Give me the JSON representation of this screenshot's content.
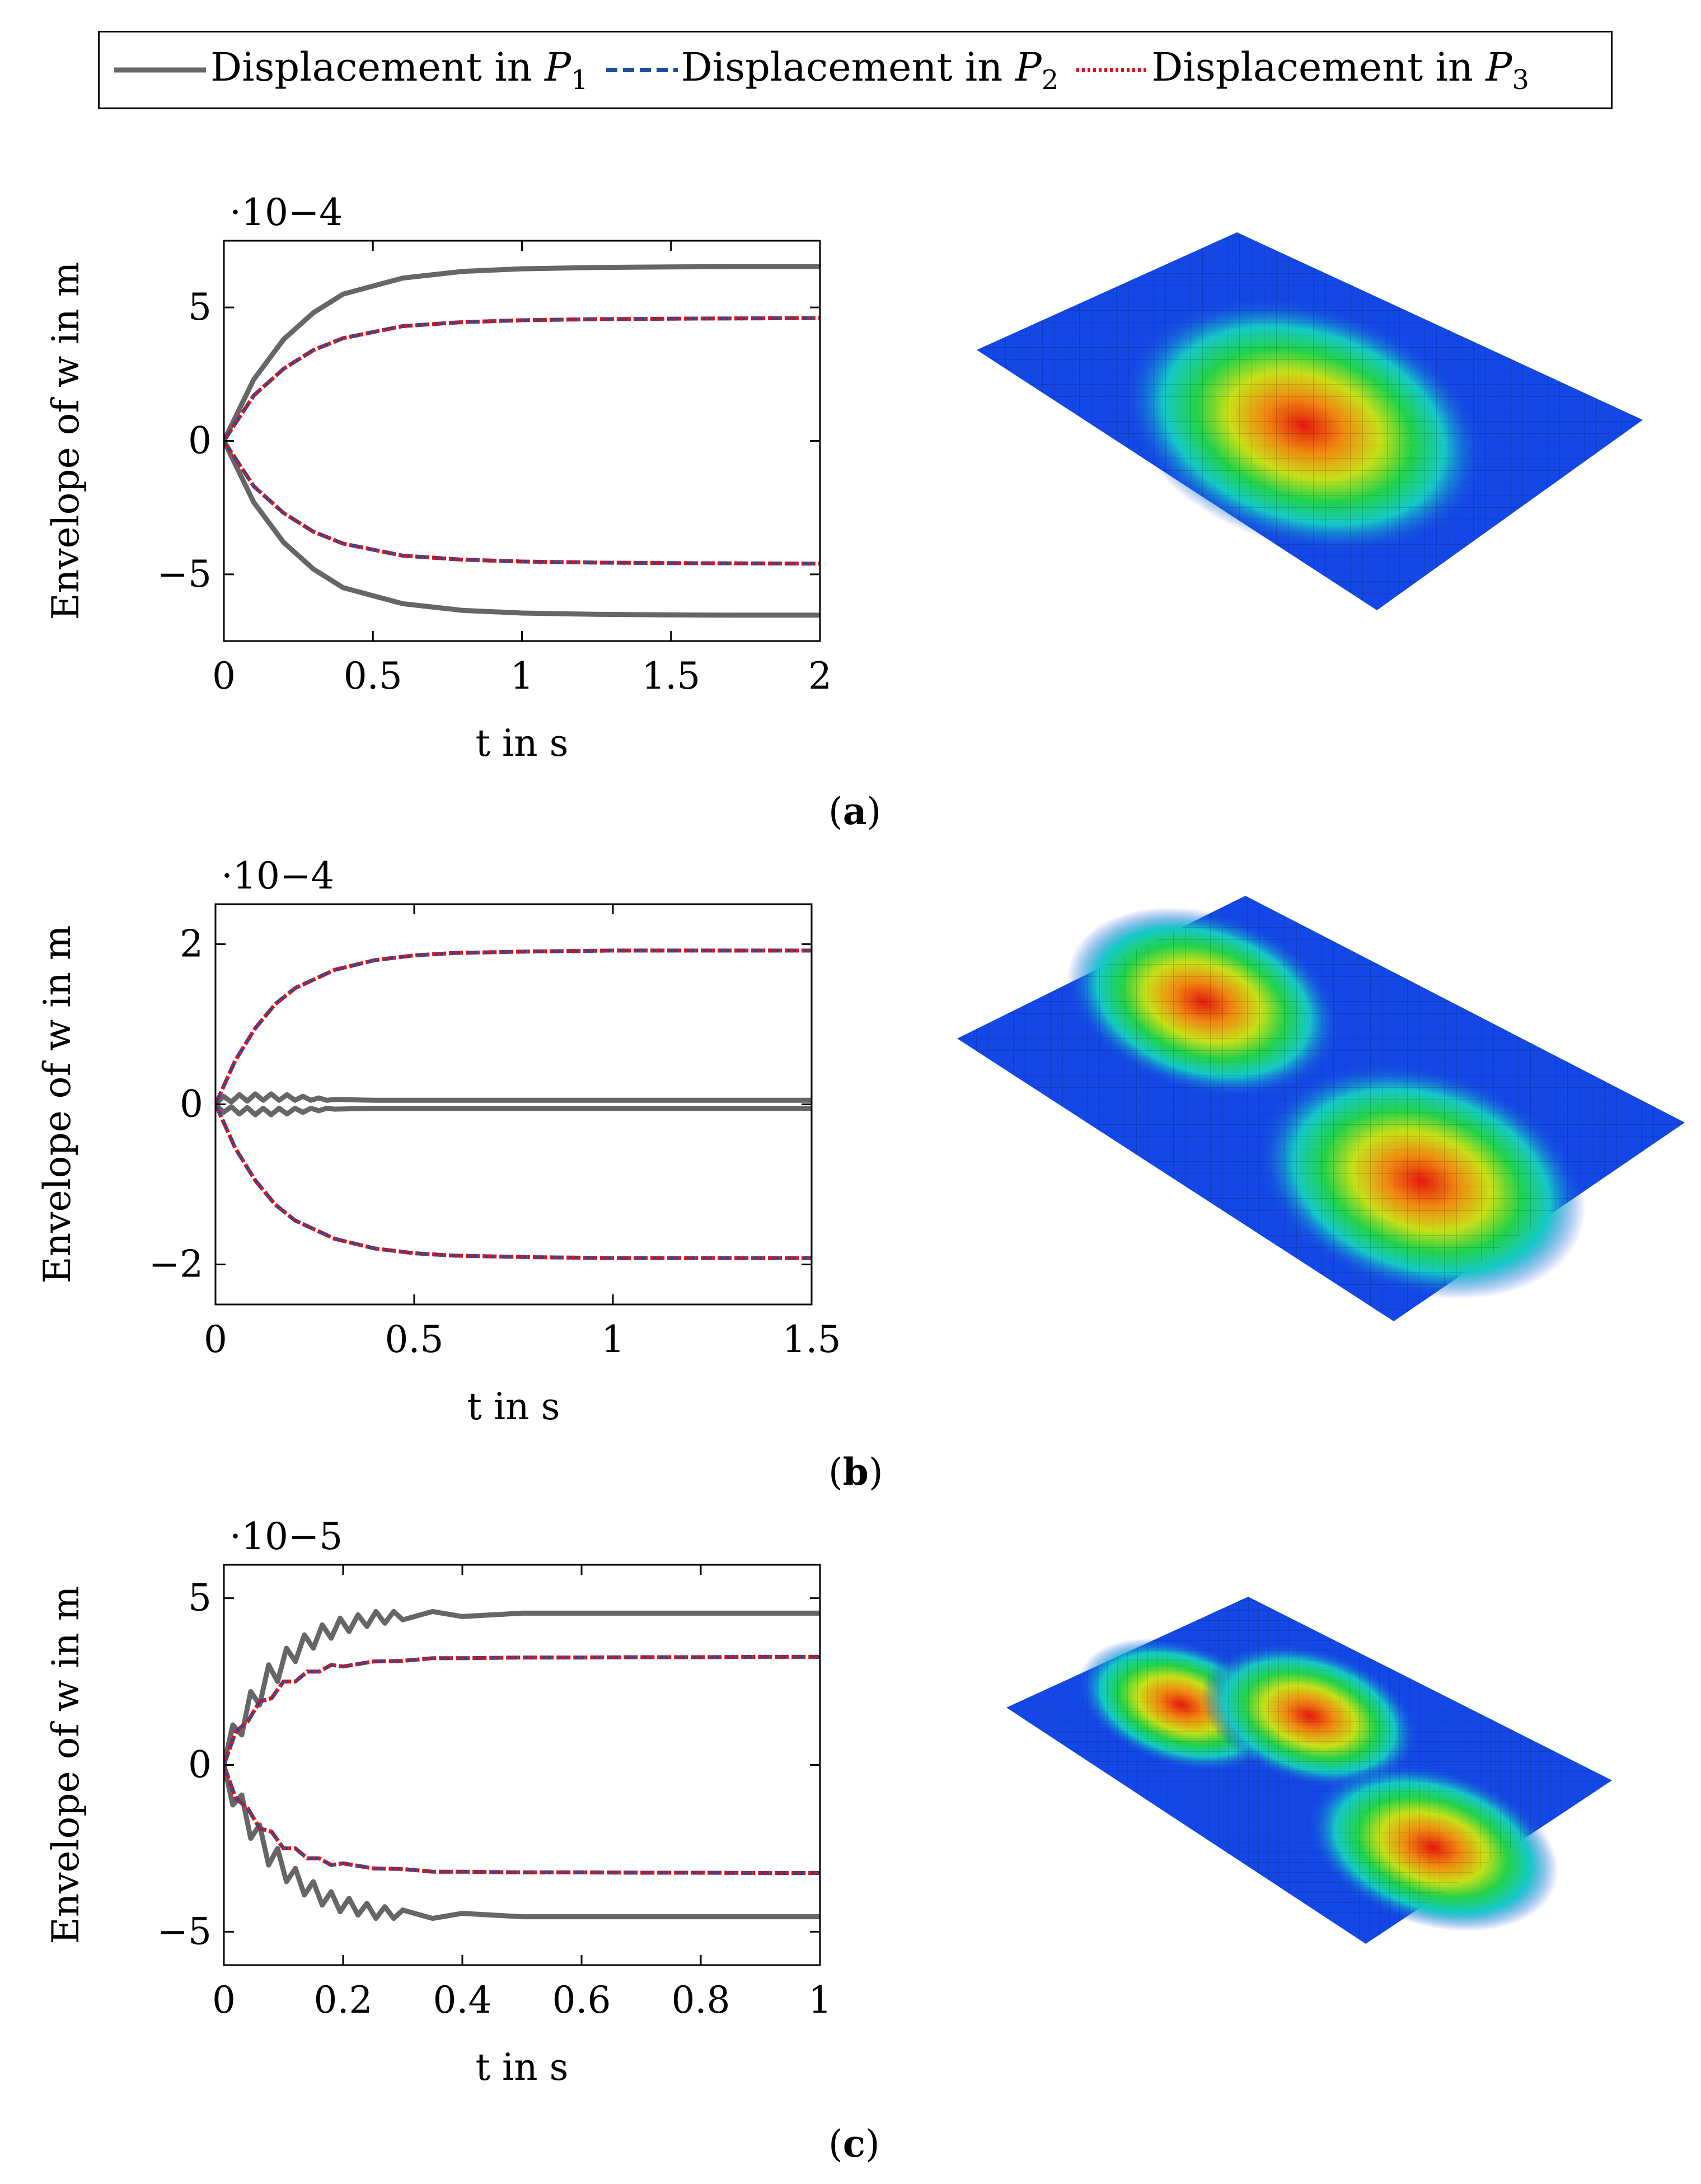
{
  "legend": {
    "items": [
      {
        "text": "Displacement in ",
        "sym": "P",
        "sub": "1",
        "color": "#666666",
        "style": "solid"
      },
      {
        "text": "Displacement in ",
        "sym": "P",
        "sub": "2",
        "color": "#1a4f9c",
        "style": "dashed"
      },
      {
        "text": "Displacement in ",
        "sym": "P",
        "sub": "3",
        "color": "#e0101e",
        "style": "dotted"
      }
    ]
  },
  "colors": {
    "p1": "#666666",
    "p2": "#1a4f9c",
    "p3": "#e0101e"
  },
  "panels": [
    {
      "label": "a",
      "caption_open": "(",
      "caption_close": ")",
      "surface_mode": "mode-1-single-peak"
    },
    {
      "label": "b",
      "caption_open": "(",
      "caption_close": ")",
      "surface_mode": "mode-2-two-peaks"
    },
    {
      "label": "c",
      "caption_open": "(",
      "caption_close": ")",
      "surface_mode": "mode-3-three-peaks"
    }
  ],
  "chart_data": [
    {
      "type": "line",
      "title": "",
      "xlabel": "t in s",
      "ylabel": "Envelope of w in m",
      "scale_label": "·10−4",
      "xlim": [
        0,
        2
      ],
      "ylim": [
        -7.5,
        7.5
      ],
      "xticks": [
        0,
        0.5,
        1,
        1.5,
        2
      ],
      "xtick_labels": [
        "0",
        "0.5",
        "1",
        "1.5",
        "2"
      ],
      "yticks": [
        -5,
        0,
        5
      ],
      "ytick_labels": [
        "−5",
        "0",
        "5"
      ],
      "series": [
        {
          "name": "Displacement in P1",
          "x": [
            0,
            0.1,
            0.2,
            0.3,
            0.4,
            0.6,
            0.8,
            1.0,
            1.25,
            1.5,
            1.75,
            2.0
          ],
          "upper": [
            0,
            2.3,
            3.8,
            4.8,
            5.5,
            6.1,
            6.35,
            6.45,
            6.5,
            6.52,
            6.53,
            6.53
          ],
          "lower": [
            0,
            -2.3,
            -3.8,
            -4.8,
            -5.5,
            -6.1,
            -6.35,
            -6.45,
            -6.5,
            -6.52,
            -6.53,
            -6.53
          ]
        },
        {
          "name": "Displacement in P2",
          "x": [
            0,
            0.1,
            0.2,
            0.3,
            0.4,
            0.6,
            0.8,
            1.0,
            1.25,
            1.5,
            1.75,
            2.0
          ],
          "upper": [
            0,
            1.7,
            2.7,
            3.4,
            3.85,
            4.3,
            4.45,
            4.52,
            4.56,
            4.58,
            4.59,
            4.6
          ],
          "lower": [
            0,
            -1.7,
            -2.7,
            -3.4,
            -3.85,
            -4.3,
            -4.45,
            -4.52,
            -4.56,
            -4.58,
            -4.59,
            -4.6
          ]
        },
        {
          "name": "Displacement in P3",
          "x": [
            0,
            0.1,
            0.2,
            0.3,
            0.4,
            0.6,
            0.8,
            1.0,
            1.25,
            1.5,
            1.75,
            2.0
          ],
          "upper": [
            0,
            1.7,
            2.7,
            3.4,
            3.85,
            4.3,
            4.45,
            4.52,
            4.56,
            4.58,
            4.59,
            4.6
          ],
          "lower": [
            0,
            -1.7,
            -2.7,
            -3.4,
            -3.85,
            -4.3,
            -4.45,
            -4.52,
            -4.56,
            -4.58,
            -4.59,
            -4.6
          ]
        }
      ]
    },
    {
      "type": "line",
      "title": "",
      "xlabel": "t in s",
      "ylabel": "Envelope of w in m",
      "scale_label": "·10−4",
      "xlim": [
        0,
        1.5
      ],
      "ylim": [
        -2.5,
        2.5
      ],
      "xticks": [
        0,
        0.5,
        1,
        1.5
      ],
      "xtick_labels": [
        "0",
        "0.5",
        "1",
        "1.5"
      ],
      "yticks": [
        -2,
        0,
        2
      ],
      "ytick_labels": [
        "−2",
        "0",
        "2"
      ],
      "series": [
        {
          "name": "Displacement in P1",
          "x": [
            0,
            0.02,
            0.04,
            0.06,
            0.08,
            0.1,
            0.12,
            0.14,
            0.16,
            0.18,
            0.2,
            0.22,
            0.24,
            0.26,
            0.28,
            0.3,
            0.4,
            0.6,
            0.8,
            1.0,
            1.2,
            1.5
          ],
          "upper": [
            0,
            0.1,
            0.03,
            0.12,
            0.04,
            0.13,
            0.05,
            0.13,
            0.05,
            0.12,
            0.05,
            0.1,
            0.05,
            0.08,
            0.05,
            0.06,
            0.05,
            0.05,
            0.05,
            0.05,
            0.05,
            0.05
          ],
          "lower": [
            0,
            -0.1,
            -0.03,
            -0.12,
            -0.04,
            -0.13,
            -0.05,
            -0.13,
            -0.05,
            -0.12,
            -0.05,
            -0.1,
            -0.05,
            -0.08,
            -0.05,
            -0.06,
            -0.05,
            -0.05,
            -0.05,
            -0.05,
            -0.05,
            -0.05
          ]
        },
        {
          "name": "Displacement in P2",
          "x": [
            0,
            0.05,
            0.1,
            0.15,
            0.2,
            0.3,
            0.4,
            0.5,
            0.6,
            0.8,
            1.0,
            1.2,
            1.5
          ],
          "upper": [
            0,
            0.55,
            0.95,
            1.25,
            1.45,
            1.68,
            1.8,
            1.86,
            1.89,
            1.91,
            1.92,
            1.92,
            1.92
          ],
          "lower": [
            0,
            -0.55,
            -0.95,
            -1.25,
            -1.45,
            -1.68,
            -1.8,
            -1.86,
            -1.89,
            -1.91,
            -1.92,
            -1.92,
            -1.92
          ]
        },
        {
          "name": "Displacement in P3",
          "x": [
            0,
            0.05,
            0.1,
            0.15,
            0.2,
            0.3,
            0.4,
            0.5,
            0.6,
            0.8,
            1.0,
            1.2,
            1.5
          ],
          "upper": [
            0,
            0.55,
            0.95,
            1.25,
            1.45,
            1.68,
            1.8,
            1.86,
            1.89,
            1.91,
            1.92,
            1.92,
            1.92
          ],
          "lower": [
            0,
            -0.55,
            -0.95,
            -1.25,
            -1.45,
            -1.68,
            -1.8,
            -1.86,
            -1.89,
            -1.91,
            -1.92,
            -1.92,
            -1.92
          ]
        }
      ]
    },
    {
      "type": "line",
      "title": "",
      "xlabel": "t in s",
      "ylabel": "Envelope of w in m",
      "scale_label": "·10−5",
      "xlim": [
        0,
        1
      ],
      "ylim": [
        -6,
        6
      ],
      "xticks": [
        0,
        0.2,
        0.4,
        0.6,
        0.8,
        1
      ],
      "xtick_labels": [
        "0",
        "0.2",
        "0.4",
        "0.6",
        "0.8",
        "1"
      ],
      "yticks": [
        -5,
        0,
        5
      ],
      "ytick_labels": [
        "−5",
        "0",
        "5"
      ],
      "series": [
        {
          "name": "Displacement in P1",
          "x": [
            0,
            0.015,
            0.03,
            0.045,
            0.06,
            0.075,
            0.09,
            0.105,
            0.12,
            0.135,
            0.15,
            0.165,
            0.18,
            0.195,
            0.21,
            0.225,
            0.24,
            0.255,
            0.27,
            0.285,
            0.3,
            0.35,
            0.4,
            0.5,
            0.6,
            0.7,
            0.8,
            0.9,
            1.0
          ],
          "upper": [
            0,
            1.2,
            0.9,
            2.2,
            1.8,
            3.0,
            2.5,
            3.5,
            3.1,
            3.9,
            3.5,
            4.2,
            3.8,
            4.4,
            4.0,
            4.5,
            4.15,
            4.6,
            4.25,
            4.6,
            4.35,
            4.6,
            4.45,
            4.55,
            4.55,
            4.55,
            4.55,
            4.55,
            4.55
          ],
          "lower": [
            0,
            -1.2,
            -0.9,
            -2.2,
            -1.8,
            -3.0,
            -2.5,
            -3.5,
            -3.1,
            -3.9,
            -3.5,
            -4.2,
            -3.8,
            -4.4,
            -4.0,
            -4.5,
            -4.15,
            -4.6,
            -4.25,
            -4.6,
            -4.35,
            -4.6,
            -4.45,
            -4.55,
            -4.55,
            -4.55,
            -4.55,
            -4.55,
            -4.55
          ]
        },
        {
          "name": "Displacement in P2",
          "x": [
            0,
            0.02,
            0.04,
            0.06,
            0.08,
            0.1,
            0.12,
            0.14,
            0.16,
            0.18,
            0.2,
            0.25,
            0.3,
            0.35,
            0.4,
            0.5,
            0.6,
            0.7,
            0.8,
            0.9,
            1.0
          ],
          "upper": [
            0,
            1.0,
            1.3,
            1.9,
            2.0,
            2.5,
            2.5,
            2.8,
            2.8,
            3.0,
            2.95,
            3.1,
            3.12,
            3.2,
            3.2,
            3.22,
            3.22,
            3.23,
            3.23,
            3.24,
            3.24
          ],
          "lower": [
            0,
            -1.0,
            -1.3,
            -1.9,
            -2.0,
            -2.5,
            -2.5,
            -2.8,
            -2.8,
            -3.0,
            -2.95,
            -3.1,
            -3.12,
            -3.2,
            -3.2,
            -3.22,
            -3.22,
            -3.23,
            -3.23,
            -3.24,
            -3.24
          ]
        },
        {
          "name": "Displacement in P3",
          "x": [
            0,
            0.02,
            0.04,
            0.06,
            0.08,
            0.1,
            0.12,
            0.14,
            0.16,
            0.18,
            0.2,
            0.25,
            0.3,
            0.35,
            0.4,
            0.5,
            0.6,
            0.7,
            0.8,
            0.9,
            1.0
          ],
          "upper": [
            0,
            1.0,
            1.3,
            1.9,
            2.0,
            2.5,
            2.5,
            2.8,
            2.8,
            3.0,
            2.95,
            3.1,
            3.12,
            3.2,
            3.2,
            3.22,
            3.22,
            3.23,
            3.23,
            3.24,
            3.24
          ],
          "lower": [
            0,
            -1.0,
            -1.3,
            -1.9,
            -2.0,
            -2.5,
            -2.5,
            -2.8,
            -2.8,
            -3.0,
            -2.95,
            -3.1,
            -3.12,
            -3.2,
            -3.2,
            -3.22,
            -3.22,
            -3.23,
            -3.23,
            -3.24,
            -3.24
          ]
        }
      ]
    }
  ]
}
